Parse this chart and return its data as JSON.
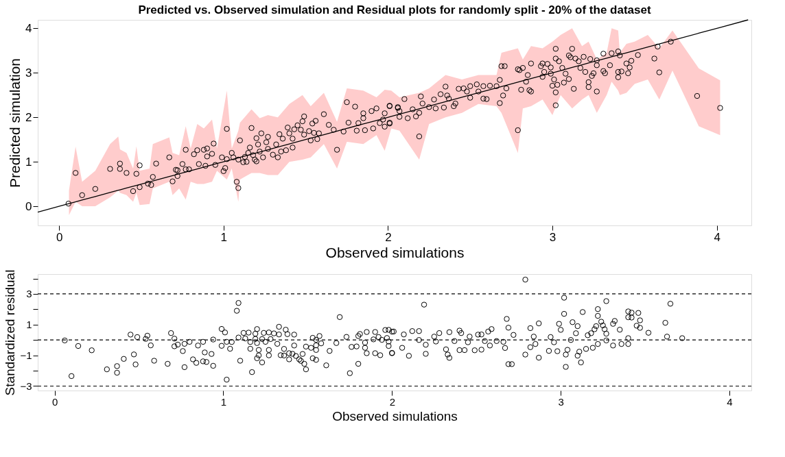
{
  "chart_data": [
    {
      "type": "scatter",
      "title": "Predicted vs. Observed simulation and Residual plots for randomly split - 20% of the dataset",
      "xlabel": "Observed simulations",
      "ylabel": "Predicted simulation",
      "xlim": [
        -0.13,
        4.21
      ],
      "ylim": [
        -0.43,
        4.19
      ],
      "xticks": [
        0,
        1,
        2,
        3,
        4
      ],
      "yticks": [
        0,
        1,
        2,
        3,
        4
      ],
      "series": [
        {
          "type": "line",
          "color": "#000000",
          "marker": "none",
          "x": [
            -0.13,
            0.06,
            0.1,
            0.14,
            0.22,
            0.31,
            0.36,
            0.37,
            0.41,
            0.45,
            0.47,
            0.49,
            0.55,
            0.57,
            0.67,
            0.69,
            0.73,
            0.77,
            0.8,
            0.84,
            0.88,
            0.93,
            0.96,
            1.02,
            1.05,
            1.09,
            1.1,
            1.17,
            1.22,
            1.27,
            1.33,
            1.4,
            1.48,
            1.53,
            1.61,
            1.69,
            1.75,
            1.85,
            1.93,
            1.98,
            2.02,
            2.07,
            2.19,
            2.25,
            2.35,
            2.45,
            2.55,
            2.66,
            2.69,
            2.79,
            2.82,
            2.87,
            2.94,
            3.0,
            3.05,
            3.12,
            3.18,
            3.22,
            3.27,
            3.33,
            3.36,
            3.4,
            3.41,
            3.45,
            3.5,
            3.58,
            3.65,
            3.73,
            3.89,
            4.02,
            4.19
          ],
          "values": [
            -0.13,
            0.06,
            0.1,
            0.14,
            0.22,
            0.31,
            0.36,
            0.37,
            0.41,
            0.45,
            0.47,
            0.49,
            0.55,
            0.57,
            0.67,
            0.69,
            0.73,
            0.77,
            0.8,
            0.84,
            0.88,
            0.93,
            0.96,
            1.02,
            1.05,
            1.09,
            1.1,
            1.17,
            1.22,
            1.27,
            1.33,
            1.4,
            1.48,
            1.53,
            1.61,
            1.69,
            1.75,
            1.85,
            1.93,
            1.98,
            2.02,
            2.07,
            2.19,
            2.25,
            2.35,
            2.45,
            2.55,
            2.66,
            2.69,
            2.79,
            2.82,
            2.87,
            2.94,
            3.0,
            3.05,
            3.12,
            3.18,
            3.22,
            3.27,
            3.33,
            3.36,
            3.4,
            3.41,
            3.45,
            3.5,
            3.58,
            3.65,
            3.73,
            3.89,
            4.02,
            4.19
          ],
          "lower": [
            null,
            -0.2,
            0.1,
            0.0,
            0.0,
            0.2,
            0.35,
            0.3,
            0.25,
            0.1,
            0.3,
            0.03,
            0.05,
            0.4,
            0.55,
            0.25,
            0.4,
            0.15,
            0.55,
            0.5,
            0.5,
            0.55,
            0.8,
            0.6,
            0.85,
            0.1,
            0.6,
            0.75,
            0.75,
            0.7,
            0.7,
            1.0,
            1.05,
            1.1,
            1.4,
            0.85,
            1.45,
            1.4,
            1.6,
            1.25,
            1.75,
            1.7,
            1.05,
            1.85,
            2.0,
            2.1,
            2.3,
            2.25,
            2.1,
            1.2,
            2.2,
            2.25,
            2.4,
            2.05,
            2.5,
            2.2,
            2.4,
            2.5,
            2.1,
            2.5,
            2.8,
            2.6,
            2.5,
            2.55,
            2.75,
            2.85,
            2.4,
            3.05,
            1.8,
            1.6,
            null
          ],
          "upper": [
            null,
            0.35,
            1.34,
            0.55,
            0.8,
            1.4,
            1.57,
            1.28,
            1.2,
            0.85,
            1.35,
            0.8,
            0.85,
            1.4,
            1.55,
            1.2,
            1.15,
            1.8,
            1.3,
            1.85,
            1.75,
            1.95,
            1.3,
            2.6,
            1.3,
            1.7,
            1.88,
            2.18,
            1.98,
            2.05,
            2.0,
            2.3,
            2.5,
            2.25,
            2.55,
            1.9,
            2.65,
            2.6,
            2.45,
            2.62,
            2.6,
            2.45,
            2.55,
            2.65,
            2.95,
            2.85,
            2.95,
            2.95,
            3.45,
            3.55,
            3.3,
            3.6,
            3.55,
            3.7,
            3.85,
            4.0,
            3.6,
            3.7,
            3.3,
            3.45,
            4.0,
            3.95,
            3.45,
            3.65,
            3.7,
            3.85,
            3.55,
            3.95,
            3.1,
            2.83,
            null
          ]
        },
        {
          "type": "scatter",
          "color": "#000000",
          "marker": "circle",
          "x": [
            0.057,
            0.1,
            0.14,
            0.22,
            0.31,
            0.37,
            0.37,
            0.41,
            0.45,
            0.47,
            0.49,
            0.49,
            0.54,
            0.56,
            0.57,
            0.59,
            0.67,
            0.69,
            0.71,
            0.72,
            0.72,
            0.75,
            0.77,
            0.77,
            0.79,
            0.82,
            0.84,
            0.85,
            0.88,
            0.89,
            0.9,
            0.9,
            0.93,
            0.94,
            0.95,
            0.99,
            1.0,
            1.01,
            1.02,
            1.02,
            1.05,
            1.06,
            1.08,
            1.09,
            1.09,
            1.1,
            1.12,
            1.13,
            1.14,
            1.15,
            1.16,
            1.17,
            1.18,
            1.19,
            1.2,
            1.2,
            1.21,
            1.22,
            1.23,
            1.24,
            1.26,
            1.27,
            1.27,
            1.3,
            1.32,
            1.33,
            1.34,
            1.35,
            1.36,
            1.38,
            1.39,
            1.4,
            1.42,
            1.42,
            1.43,
            1.45,
            1.47,
            1.48,
            1.49,
            1.49,
            1.52,
            1.53,
            1.54,
            1.55,
            1.56,
            1.57,
            1.58,
            1.61,
            1.64,
            1.67,
            1.69,
            1.73,
            1.75,
            1.76,
            1.8,
            1.81,
            1.82,
            1.85,
            1.85,
            1.86,
            1.9,
            1.91,
            1.93,
            1.95,
            1.97,
            1.98,
            1.98,
            2.01,
            2.01,
            2.06,
            2.01,
            2.06,
            2.07,
            2.01,
            2.07,
            2.12,
            2.17,
            2.15,
            2.19,
            2.19,
            2.21,
            2.2,
            2.1,
            2.25,
            2.28,
            2.29,
            2.32,
            2.34,
            2.35,
            2.36,
            2.37,
            2.4,
            2.41,
            2.43,
            2.46,
            2.48,
            2.5,
            2.5,
            2.54,
            2.55,
            2.58,
            2.58,
            2.6,
            2.62,
            2.66,
            2.68,
            2.68,
            2.69,
            2.7,
            2.71,
            2.72,
            2.79,
            2.79,
            2.8,
            2.81,
            2.82,
            2.84,
            2.85,
            2.86,
            2.87,
            2.87,
            2.94,
            2.93,
            2.94,
            2.95,
            2.97,
            2.99,
            2.99,
            3.0,
            3.01,
            3.02,
            3.02,
            3.02,
            3.02,
            3.03,
            3.04,
            3.06,
            3.07,
            3.08,
            3.1,
            3.1,
            3.11,
            3.12,
            3.13,
            3.14,
            3.16,
            3.17,
            3.19,
            3.2,
            3.22,
            3.22,
            3.23,
            3.24,
            3.25,
            3.27,
            3.27,
            3.27,
            3.31,
            3.31,
            3.32,
            3.35,
            3.36,
            3.4,
            3.4,
            3.4,
            3.41,
            3.42,
            3.45,
            3.46,
            3.47,
            3.48,
            3.52,
            3.62,
            3.64,
            3.65,
            3.72,
            3.88,
            4.02
          ],
          "values": [
            0.06,
            0.75,
            0.25,
            0.39,
            0.84,
            0.96,
            0.84,
            0.75,
            0.34,
            0.73,
            0.92,
            0.43,
            0.51,
            0.48,
            0.66,
            0.96,
            1.1,
            0.56,
            0.82,
            0.68,
            0.81,
            0.95,
            1.27,
            0.83,
            0.83,
            1.17,
            1.26,
            0.95,
            1.27,
            0.91,
            1.12,
            1.3,
            1.18,
            1.41,
            0.93,
            1.1,
            0.79,
            0.86,
            1.74,
            1.06,
            1.2,
            1.1,
            0.55,
            0.41,
            1.05,
            1.48,
            0.99,
            1.11,
            1.0,
            1.2,
            1.32,
            1.76,
            1.15,
            1.05,
            1.53,
            1.01,
            1.39,
            1.23,
            1.64,
            1.1,
            1.44,
            1.56,
            1.29,
            1.16,
            1.39,
            1.1,
            1.62,
            1.23,
            1.52,
            1.26,
            1.77,
            1.64,
            1.32,
            1.52,
            1.73,
            1.82,
            1.72,
            1.91,
            2.02,
            1.61,
            1.69,
            1.48,
            1.86,
            1.65,
            1.92,
            1.51,
            1.64,
            2.07,
            1.83,
            1.72,
            1.27,
            1.68,
            2.34,
            1.88,
            2.24,
            1.7,
            1.87,
            1.98,
            2.09,
            1.71,
            2.14,
            1.75,
            2.2,
            1.87,
            1.95,
            1.79,
            2.09,
            2.25,
            1.86,
            2.21,
            2.26,
            2.23,
            2.14,
            1.88,
            2.01,
            1.98,
            2.02,
            2.18,
            1.57,
            2.1,
            2.31,
            2.47,
            2.41,
            2.23,
            2.4,
            2.2,
            2.52,
            2.22,
            2.69,
            2.49,
            2.42,
            2.25,
            2.31,
            2.64,
            2.65,
            2.58,
            2.7,
            2.44,
            2.74,
            2.58,
            2.42,
            2.7,
            2.41,
            2.71,
            2.7,
            2.84,
            2.32,
            3.15,
            2.49,
            3.15,
            2.65,
            1.71,
            3.08,
            3.06,
            2.62,
            3.11,
            2.8,
            2.95,
            2.61,
            2.58,
            3.21,
            3.21,
            3.15,
            2.91,
            3.02,
            3.2,
            3.12,
            2.98,
            2.71,
            2.85,
            2.56,
            3.54,
            3.32,
            2.27,
            2.73,
            3.26,
            3.11,
            2.78,
            2.98,
            3.39,
            2.86,
            3.35,
            3.54,
            2.64,
            3.32,
            3.26,
            3.11,
            3.36,
            3.02,
            2.79,
            2.68,
            3.31,
            2.93,
            2.99,
            3.17,
            2.58,
            3.28,
            3.04,
            3.43,
            2.99,
            3.17,
            3.44,
            3.48,
            3.02,
            2.9,
            3.39,
            3.03,
            3.21,
            2.99,
            3.12,
            3.27,
            3.4,
            3.32,
            3.59,
            3.01,
            3.7,
            2.48,
            2.21
          ]
        }
      ]
    },
    {
      "type": "scatter",
      "xlabel": "Observed simulations",
      "ylabel": "Standardized residual",
      "xlim": [
        -0.1,
        4.13
      ],
      "ylim": [
        -3.29,
        4.29
      ],
      "xticks": [
        0,
        1,
        2,
        3,
        4
      ],
      "yticks": [
        -3,
        {
          "value": -2,
          "label": null
        },
        -1,
        {
          "value": 0,
          "label": null
        },
        1,
        {
          "value": 2,
          "label": null
        },
        3,
        {
          "value": 4,
          "label": null
        }
      ],
      "marker": "circle",
      "ref_lines": [
        {
          "axis": "y",
          "value": 3,
          "color": "#000000",
          "line_style": "dashed"
        },
        {
          "axis": "y",
          "value": 0,
          "color": "#000000",
          "line_style": "dashed"
        },
        {
          "axis": "y",
          "value": -3,
          "color": "#000000",
          "line_style": "dashed"
        }
      ],
      "series": [
        {
          "type": "scatter",
          "color": "#000000",
          "x": [
            0.06,
            0.1,
            0.14,
            0.22,
            0.31,
            0.37,
            0.37,
            0.41,
            0.45,
            0.47,
            0.48,
            0.49,
            0.54,
            0.55,
            0.57,
            0.59,
            0.67,
            0.69,
            0.71,
            0.71,
            0.73,
            0.76,
            0.77,
            0.77,
            0.8,
            0.82,
            0.84,
            0.85,
            0.88,
            0.88,
            0.89,
            0.9,
            0.93,
            0.94,
            0.94,
            0.99,
            0.99,
            1.01,
            1.02,
            1.02,
            1.04,
            1.05,
            1.08,
            1.09,
            1.09,
            1.1,
            1.12,
            1.13,
            1.15,
            1.16,
            1.16,
            1.17,
            1.19,
            1.19,
            1.2,
            1.2,
            1.21,
            1.21,
            1.2,
            1.23,
            1.23,
            1.24,
            1.25,
            1.27,
            1.27,
            1.28,
            1.27,
            1.3,
            1.32,
            1.33,
            1.33,
            1.34,
            1.36,
            1.36,
            1.37,
            1.38,
            1.39,
            1.39,
            1.41,
            1.42,
            1.42,
            1.43,
            1.45,
            1.46,
            1.47,
            1.48,
            1.49,
            1.49,
            1.52,
            1.53,
            1.53,
            1.55,
            1.55,
            1.55,
            1.55,
            1.57,
            1.58,
            1.61,
            1.63,
            1.67,
            1.69,
            1.73,
            1.75,
            1.76,
            1.79,
            1.8,
            1.8,
            1.81,
            1.84,
            1.84,
            1.85,
            1.85,
            1.89,
            1.9,
            1.9,
            1.92,
            1.93,
            1.94,
            1.96,
            1.97,
            1.98,
            1.98,
            2.0,
            2.0,
            1.98,
            2.0,
            2.01,
            2.07,
            2.06,
            2.1,
            2.12,
            2.16,
            2.16,
            2.19,
            2.2,
            2.2,
            2.25,
            2.26,
            2.28,
            2.32,
            2.33,
            2.34,
            2.34,
            2.37,
            2.4,
            2.4,
            2.41,
            2.43,
            2.45,
            2.46,
            2.49,
            2.51,
            2.53,
            2.53,
            2.55,
            2.57,
            2.59,
            2.58,
            2.62,
            2.66,
            2.67,
            2.68,
            2.69,
            2.69,
            2.71,
            2.72,
            2.79,
            2.79,
            2.82,
            2.82,
            2.84,
            2.85,
            2.87,
            2.87,
            2.93,
            2.94,
            2.96,
            2.98,
            2.99,
            3.02,
            3.02,
            3.0,
            3.03,
            3.03,
            3.04,
            3.06,
            3.07,
            3.09,
            3.1,
            3.1,
            3.11,
            3.12,
            3.13,
            3.15,
            3.16,
            3.18,
            3.19,
            3.2,
            3.21,
            3.22,
            3.22,
            3.22,
            3.24,
            3.25,
            3.26,
            3.27,
            3.27,
            3.27,
            3.31,
            3.31,
            3.32,
            3.35,
            3.36,
            3.4,
            3.4,
            3.4,
            3.4,
            3.42,
            3.42,
            3.45,
            3.46,
            3.47,
            3.47,
            3.52,
            3.62,
            3.63,
            3.65,
            3.72
          ],
          "values": [
            -0.03,
            -2.35,
            -0.39,
            -0.67,
            -1.91,
            -2.13,
            -1.7,
            -1.23,
            0.35,
            -0.94,
            -1.59,
            0.19,
            0.07,
            0.28,
            -0.35,
            -1.35,
            -1.55,
            0.45,
            0.09,
            -0.41,
            -0.3,
            -0.72,
            -0.25,
            -1.77,
            -0.12,
            -1.26,
            -1.49,
            -0.36,
            -0.12,
            -1.39,
            -0.81,
            -1.43,
            -0.91,
            -1.68,
            0.03,
            -0.38,
            0.72,
            0.49,
            -2.58,
            -0.12,
            -0.57,
            -0.13,
            1.9,
            2.41,
            0.16,
            -1.35,
            0.46,
            0.1,
            0.48,
            -0.13,
            -0.57,
            -2.09,
            0.41,
            0.07,
            0.71,
            -0.2,
            -0.65,
            -1.0,
            -1.19,
            0.06,
            -1.46,
            0.46,
            -0.12,
            0.49,
            -1.0,
            0.06,
            -0.65,
            0.43,
            -0.25,
            0.86,
            0.36,
            -0.99,
            -0.58,
            -1.01,
            0.67,
            0.38,
            -1.26,
            -0.86,
            -0.9,
            0.35,
            -0.36,
            -1.04,
            -1.26,
            -1.36,
            -0.91,
            -1.55,
            -1.91,
            -0.43,
            -0.51,
            0.14,
            -1.19,
            -0.35,
            -0.65,
            -1.29,
            0.01,
            0.26,
            -0.22,
            -1.65,
            -0.71,
            -0.2,
            1.49,
            0.2,
            -2.16,
            -0.45,
            -0.42,
            -1.55,
            0.26,
            0.39,
            -0.17,
            -0.51,
            -0.86,
            0.52,
            0.04,
            -0.86,
            0.52,
            0.19,
            -0.99,
            0.01,
            0.65,
            0.13,
            -0.1,
            -0.39,
            -0.86,
            0.54,
            0.66,
            -0.84,
            0.55,
            0.36,
            -0.51,
            -1.03,
            0.58,
            0.0,
            0.58,
            2.3,
            -0.9,
            -0.31,
            0.22,
            -0.1,
            0.45,
            -0.61,
            -0.95,
            0.51,
            -1.16,
            -0.07,
            0.61,
            -0.66,
            0.45,
            -0.66,
            -0.15,
            0.22,
            -0.67,
            0.35,
            0.36,
            -0.63,
            -0.07,
            0.55,
            0.71,
            -0.36,
            -0.07,
            -0.12,
            -0.52,
            1.37,
            0.8,
            -1.57,
            -1.57,
            0.33,
            -0.95,
            3.93,
            0.77,
            -0.47,
            0.22,
            -0.26,
            1.08,
            -1.15,
            -0.71,
            0.19,
            -0.15,
            -0.73,
            1.05,
            1.7,
            2.75,
            0.66,
            -1.75,
            -0.95,
            -0.64,
            0.0,
            1.16,
            0.44,
            0.9,
            -1.02,
            -0.76,
            -1.46,
            1.82,
            -0.58,
            0.31,
            0.44,
            -0.51,
            0.7,
            0.9,
            1.57,
            2.01,
            -0.26,
            1.19,
            0.95,
            0.7,
            0.41,
            2.53,
            -0.03,
            -0.36,
            1.05,
            1.24,
            0.67,
            -0.26,
            0.12,
            -0.26,
            1.86,
            1.48,
            1.78,
            1.46,
            0.93,
            1.76,
            1.28,
            0.79,
            0.47,
            1.12,
            0.22,
            2.36,
            0.12
          ]
        }
      ]
    }
  ]
}
